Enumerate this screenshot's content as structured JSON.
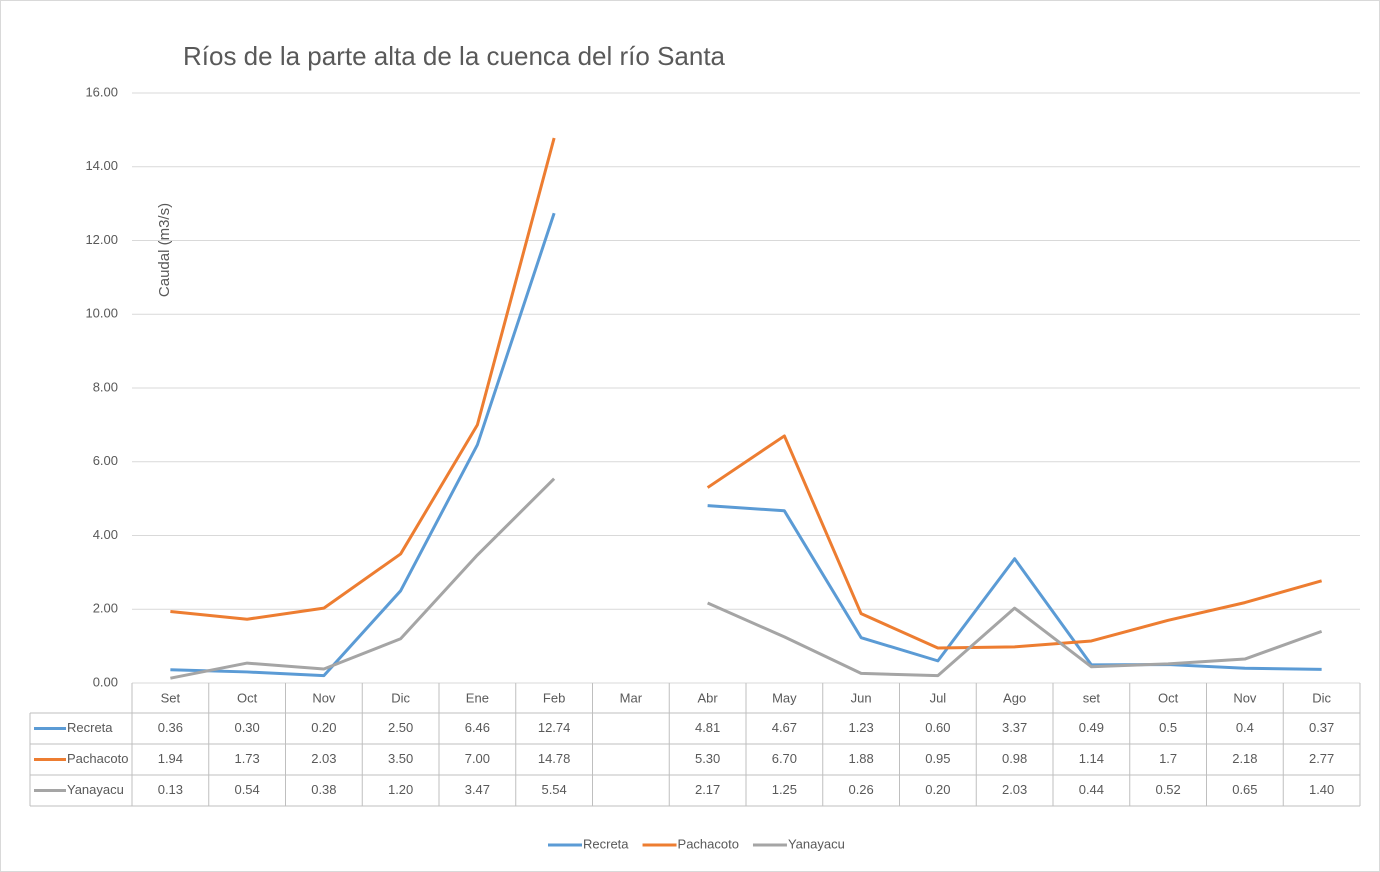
{
  "chart_data": {
    "type": "line",
    "title": "Ríos de la parte alta de la cuenca del río Santa",
    "y_label": "Caudal (m3/s)",
    "categories": [
      "Set",
      "Oct",
      "Nov",
      "Dic",
      "Ene",
      "Feb",
      "Mar",
      "Abr",
      "May",
      "Jun",
      "Jul",
      "Ago",
      "set",
      "Oct",
      "Nov",
      "Dic"
    ],
    "series": [
      {
        "name": "Recreta",
        "color": "#5b9bd5",
        "values": [
          0.36,
          0.3,
          0.2,
          2.5,
          6.46,
          12.74,
          null,
          4.81,
          4.67,
          1.23,
          0.6,
          3.37,
          0.49,
          0.5,
          0.4,
          0.37
        ],
        "value_labels": [
          "0.36",
          "0.30",
          "0.20",
          "2.50",
          "6.46",
          "12.74",
          null,
          "4.81",
          "4.67",
          "1.23",
          "0.60",
          "3.37",
          "0.49",
          "0.5",
          "0.4",
          "0.37"
        ]
      },
      {
        "name": "Pachacoto",
        "color": "#ed7d31",
        "values": [
          1.94,
          1.73,
          2.03,
          3.5,
          7.0,
          14.78,
          null,
          5.3,
          6.7,
          1.88,
          0.95,
          0.98,
          1.14,
          1.7,
          2.18,
          2.77
        ],
        "value_labels": [
          "1.94",
          "1.73",
          "2.03",
          "3.50",
          "7.00",
          "14.78",
          null,
          "5.30",
          "6.70",
          "1.88",
          "0.95",
          "0.98",
          "1.14",
          "1.7",
          "2.18",
          "2.77"
        ]
      },
      {
        "name": "Yanayacu",
        "color": "#a5a5a5",
        "values": [
          0.13,
          0.54,
          0.38,
          1.2,
          3.47,
          5.54,
          null,
          2.17,
          1.25,
          0.26,
          0.2,
          2.03,
          0.44,
          0.52,
          0.65,
          1.4
        ],
        "value_labels": [
          "0.13",
          "0.54",
          "0.38",
          "1.20",
          "3.47",
          "5.54",
          null,
          "2.17",
          "1.25",
          "0.26",
          "0.20",
          "2.03",
          "0.44",
          "0.52",
          "0.65",
          "1.40"
        ]
      }
    ],
    "ylim": [
      0,
      16
    ],
    "yticks": [
      {
        "value": 0,
        "label": "0.00"
      },
      {
        "value": 2,
        "label": "2.00"
      },
      {
        "value": 4,
        "label": "4.00"
      },
      {
        "value": 6,
        "label": "6.00"
      },
      {
        "value": 8,
        "label": "8.00"
      },
      {
        "value": 10,
        "label": "10.00"
      },
      {
        "value": 12,
        "label": "12.00"
      },
      {
        "value": 14,
        "label": "14.00"
      },
      {
        "value": 16,
        "label": "16.00"
      }
    ],
    "grid": true,
    "legend": "bottom"
  }
}
